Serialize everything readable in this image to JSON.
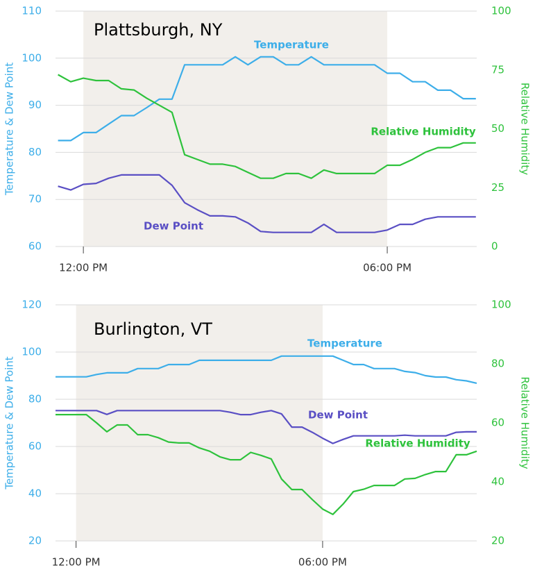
{
  "chart_data": [
    {
      "type": "line",
      "title": "Plattsburgh, NY",
      "ylabel": "Temperature & Dew Point",
      "y2label": "Relative Humidity",
      "xlim": [
        687,
        1186
      ],
      "xticks": [
        {
          "value": 720,
          "label": "12:00 PM"
        },
        {
          "value": 1080,
          "label": "06:00 PM"
        }
      ],
      "ylim": [
        60,
        110
      ],
      "yticks": [
        60,
        70,
        80,
        90,
        100,
        110
      ],
      "y2lim": [
        0,
        100
      ],
      "y2ticks": [
        0,
        25,
        50,
        75,
        100
      ],
      "grid": true,
      "shaded": [
        720,
        1080
      ],
      "shade_color": "#f2efeb",
      "x": [
        690,
        705,
        720,
        735,
        750,
        765,
        780,
        795,
        810,
        825,
        840,
        855,
        870,
        885,
        900,
        915,
        930,
        945,
        960,
        975,
        990,
        1005,
        1020,
        1035,
        1050,
        1065,
        1080,
        1095,
        1110,
        1125,
        1140,
        1155,
        1170,
        1185
      ],
      "series": [
        {
          "name": "Temperature",
          "color": "#3daee9",
          "values": [
            82.5,
            82.5,
            84.2,
            84.2,
            86,
            87.8,
            87.8,
            89.5,
            91.3,
            91.3,
            98.6,
            98.6,
            98.6,
            98.6,
            100.3,
            98.6,
            100.3,
            100.3,
            98.6,
            98.6,
            100.3,
            98.6,
            98.6,
            98.6,
            98.6,
            98.6,
            96.8,
            96.8,
            95,
            95,
            93.2,
            93.2,
            91.4,
            91.4
          ]
        },
        {
          "name": "Relative Humidity",
          "color": "#2ec23c",
          "axis": "y2",
          "values": [
            73,
            70,
            71.5,
            70.5,
            70.5,
            67,
            66.5,
            63,
            60,
            57,
            39,
            37,
            35,
            35,
            34,
            31.5,
            29,
            29,
            31,
            31,
            29,
            32.5,
            31,
            31,
            31,
            31,
            34.5,
            34.5,
            37,
            40,
            42,
            42,
            44,
            44
          ]
        },
        {
          "name": "Dew Point",
          "color": "#5a4fc4",
          "values": [
            72.8,
            72,
            73.2,
            73.4,
            74.5,
            75.2,
            75.2,
            75.2,
            75.2,
            73,
            69.3,
            67.8,
            66.5,
            66.5,
            66.3,
            65,
            63.2,
            63,
            63,
            63,
            63,
            64.7,
            63,
            63,
            63,
            63,
            63.5,
            64.7,
            64.7,
            65.8,
            66.3,
            66.3,
            66.3,
            66.3
          ]
        }
      ]
    },
    {
      "type": "line",
      "title": "Burlington, VT",
      "ylabel": "Temperature & Dew Point",
      "y2label": "Relative Humidity",
      "xlim": [
        690,
        1305
      ],
      "xticks": [
        {
          "value": 720,
          "label": "12:00 PM"
        },
        {
          "value": 1080,
          "label": "06:00 PM"
        }
      ],
      "ylim": [
        20,
        120
      ],
      "yticks": [
        20,
        40,
        60,
        80,
        100,
        120
      ],
      "y2lim": [
        20,
        100
      ],
      "y2ticks": [
        20,
        40,
        60,
        80,
        100
      ],
      "grid": true,
      "shaded": [
        720,
        1080
      ],
      "shade_color": "#f2efeb",
      "x": [
        690,
        705,
        720,
        735,
        750,
        765,
        780,
        795,
        810,
        825,
        840,
        855,
        870,
        885,
        900,
        915,
        930,
        945,
        960,
        975,
        990,
        1005,
        1020,
        1035,
        1050,
        1065,
        1080,
        1095,
        1110,
        1125,
        1140,
        1155,
        1170,
        1185,
        1200,
        1215,
        1230,
        1245,
        1260,
        1275,
        1290,
        1305
      ],
      "series": [
        {
          "name": "Temperature",
          "color": "#3daee9",
          "values": [
            89.5,
            89.5,
            89.5,
            89.5,
            90.5,
            91.2,
            91.2,
            91.2,
            93,
            93,
            93,
            94.7,
            94.7,
            94.7,
            96.5,
            96.5,
            96.5,
            96.5,
            96.5,
            96.5,
            96.5,
            96.5,
            98.3,
            98.3,
            98.3,
            98.3,
            98.3,
            98.3,
            96.5,
            94.7,
            94.7,
            93,
            93,
            93,
            91.8,
            91.3,
            90,
            89.4,
            89.4,
            88.3,
            87.8,
            86.8
          ]
        },
        {
          "name": "Dew Point",
          "color": "#5a4fc4",
          "values": [
            75.2,
            75.2,
            75.2,
            75.2,
            75.2,
            73.6,
            75.2,
            75.2,
            75.2,
            75.2,
            75.2,
            75.2,
            75.2,
            75.2,
            75.2,
            75.2,
            75.2,
            74.5,
            73.5,
            73.5,
            74.5,
            75.2,
            73.8,
            68.2,
            68.2,
            66,
            63.5,
            61.3,
            63,
            64.5,
            64.5,
            64.5,
            64.5,
            64.5,
            64.8,
            64.5,
            64.5,
            64.5,
            64.5,
            66,
            66.2,
            66.2
          ]
        },
        {
          "name": "Relative Humidity",
          "color": "#2ec23c",
          "axis": "y2",
          "values": [
            62.8,
            62.8,
            62.8,
            62.8,
            60,
            57,
            59.3,
            59.3,
            56,
            56,
            55,
            53.5,
            53.2,
            53.2,
            51.5,
            50.4,
            48.5,
            47.5,
            47.5,
            50,
            49,
            47.8,
            41,
            37.4,
            37.4,
            34,
            30.8,
            29,
            32.5,
            36.7,
            37.5,
            38.8,
            38.8,
            38.8,
            41,
            41.2,
            42.5,
            43.5,
            43.5,
            49.2,
            49.2,
            50.4
          ]
        }
      ]
    }
  ]
}
